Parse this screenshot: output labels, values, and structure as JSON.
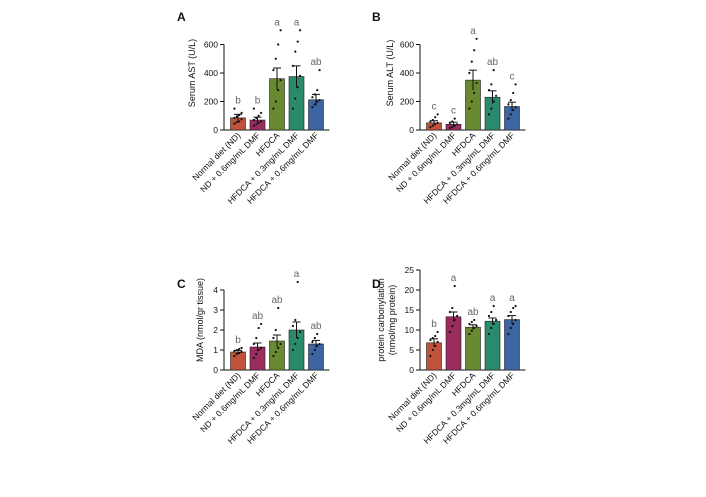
{
  "colors": [
    "#c0533a",
    "#9b2c5e",
    "#6a8a32",
    "#2a8b6c",
    "#3e65a3"
  ],
  "chart_data": [
    {
      "panel": "A",
      "type": "bar",
      "ylabel": "Serum AST (U/L)",
      "ylim": [
        0,
        800
      ],
      "yticks": [
        0,
        200,
        400,
        600
      ],
      "categories": [
        "Normal diet (ND)",
        "ND + 0.6mg/mL DMF",
        "HFDCA",
        "HFDCA + 0.3mg/mL DMF",
        "HFDCA + 0.6mg/mL DMF"
      ],
      "values": [
        85,
        70,
        360,
        375,
        212
      ],
      "errors": [
        25,
        20,
        75,
        75,
        38
      ],
      "letters": [
        "b",
        "b",
        "a",
        "a",
        "ab"
      ],
      "points": [
        [
          45,
          55,
          60,
          75,
          85,
          95,
          105,
          120,
          150
        ],
        [
          30,
          40,
          50,
          60,
          70,
          85,
          100,
          120,
          150
        ],
        [
          150,
          200,
          280,
          350,
          420,
          500,
          600,
          700
        ],
        [
          150,
          220,
          300,
          380,
          450,
          550,
          620,
          700
        ],
        [
          160,
          180,
          200,
          210,
          230,
          250,
          280,
          420
        ]
      ]
    },
    {
      "panel": "B",
      "type": "bar",
      "ylabel": "Serum ALT (U/L)",
      "ylim": [
        0,
        800
      ],
      "yticks": [
        0,
        200,
        400,
        600
      ],
      "categories": [
        "Normal diet (ND)",
        "ND + 0.6mg/mL DMF",
        "HFDCA",
        "HFDCA + 0.3mg/mL DMF",
        "HFDCA + 0.6mg/mL DMF"
      ],
      "values": [
        50,
        40,
        350,
        230,
        165
      ],
      "errors": [
        15,
        15,
        70,
        45,
        30
      ],
      "letters": [
        "c",
        "c",
        "a",
        "ab",
        "c"
      ],
      "points": [
        [
          20,
          30,
          40,
          50,
          60,
          70,
          90,
          110
        ],
        [
          15,
          20,
          30,
          40,
          50,
          60,
          80
        ],
        [
          150,
          200,
          260,
          330,
          400,
          480,
          560,
          640
        ],
        [
          110,
          150,
          200,
          240,
          280,
          320,
          420
        ],
        [
          80,
          110,
          140,
          160,
          180,
          210,
          260,
          320
        ]
      ]
    },
    {
      "panel": "C",
      "type": "bar",
      "ylabel": "MDA (nmol/gr tissue)",
      "ylim": [
        0,
        5
      ],
      "yticks": [
        0,
        1,
        2,
        3,
        4
      ],
      "categories": [
        "Normal diet (ND)",
        "ND + 0.6mg/mL DMF",
        "HFDCA",
        "HFDCA + 0.3mg/mL DMF",
        "HFDCA + 0.6mg/mL DMF"
      ],
      "values": [
        0.9,
        1.15,
        1.45,
        2.0,
        1.3
      ],
      "errors": [
        0.08,
        0.2,
        0.3,
        0.4,
        0.18
      ],
      "letters": [
        "b",
        "ab",
        "ab",
        "a",
        "ab"
      ],
      "points": [
        [
          0.7,
          0.8,
          0.85,
          0.9,
          0.95,
          1.0,
          1.05,
          1.1
        ],
        [
          0.6,
          0.8,
          1.0,
          1.1,
          1.3,
          1.6,
          2.1,
          2.3
        ],
        [
          0.7,
          0.9,
          1.1,
          1.3,
          1.6,
          2.0,
          3.1
        ],
        [
          1.0,
          1.3,
          1.6,
          1.9,
          2.2,
          2.5,
          4.4
        ],
        [
          0.8,
          1.0,
          1.2,
          1.3,
          1.4,
          1.6,
          1.8
        ]
      ]
    },
    {
      "panel": "D",
      "type": "bar",
      "ylabel": "protein carbonylation (nmol/mg protein)",
      "ylim": [
        0,
        25
      ],
      "yticks": [
        0,
        5,
        10,
        15,
        20,
        25
      ],
      "categories": [
        "Normal diet (ND)",
        "ND + 0.6mg/mL DMF",
        "HFDCA",
        "HFDCA + 0.3mg/mL DMF",
        "HFDCA + 0.6mg/mL DMF"
      ],
      "values": [
        6.8,
        13.3,
        10.7,
        12.2,
        12.6
      ],
      "errors": [
        1.0,
        1.2,
        0.6,
        0.8,
        1.0
      ],
      "letters": [
        "b",
        "a",
        "ab",
        "a",
        "a"
      ],
      "points": [
        [
          3.5,
          5.0,
          6.0,
          7.0,
          7.5,
          8.0,
          8.5,
          9.5
        ],
        [
          9.5,
          11.0,
          12.5,
          13.5,
          14.5,
          15.5,
          21.0
        ],
        [
          9.0,
          9.8,
          10.5,
          11.0,
          11.5,
          12.0,
          12.5
        ],
        [
          9.0,
          10.5,
          11.5,
          12.5,
          13.5,
          14.5,
          16.0
        ],
        [
          9.0,
          10.5,
          11.5,
          12.5,
          13.5,
          14.5,
          15.5,
          16.0
        ]
      ]
    }
  ]
}
